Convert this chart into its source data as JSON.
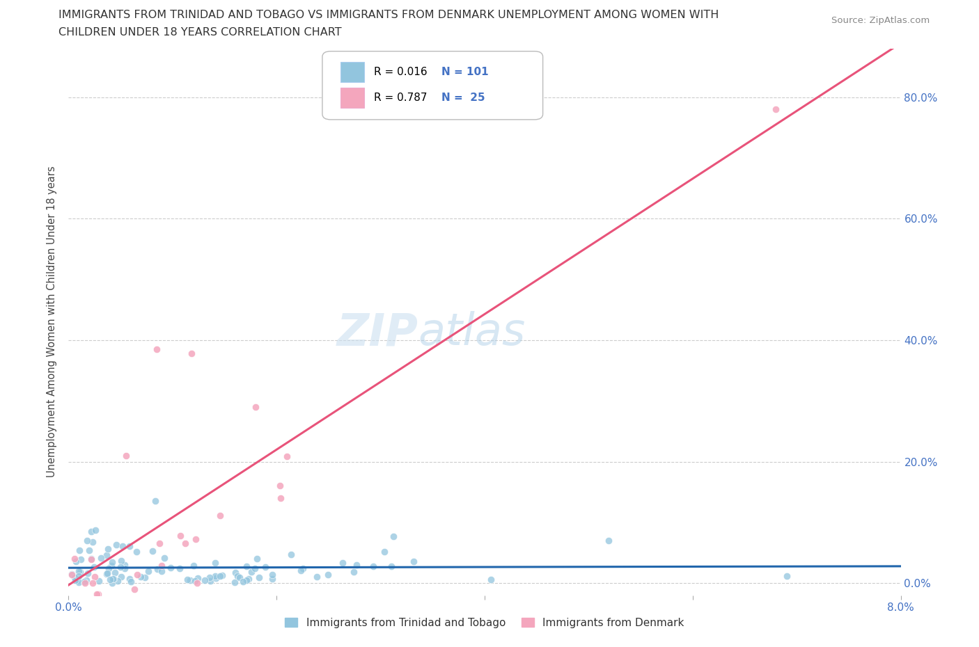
{
  "title_line1": "IMMIGRANTS FROM TRINIDAD AND TOBAGO VS IMMIGRANTS FROM DENMARK UNEMPLOYMENT AMONG WOMEN WITH",
  "title_line2": "CHILDREN UNDER 18 YEARS CORRELATION CHART",
  "source": "Source: ZipAtlas.com",
  "ylabel": "Unemployment Among Women with Children Under 18 years",
  "ytick_labels": [
    "0.0%",
    "20.0%",
    "40.0%",
    "60.0%",
    "80.0%"
  ],
  "ytick_values": [
    0.0,
    0.2,
    0.4,
    0.6,
    0.8
  ],
  "xlim": [
    0.0,
    0.08
  ],
  "ylim": [
    -0.02,
    0.88
  ],
  "legend_label1": "Immigrants from Trinidad and Tobago",
  "legend_label2": "Immigrants from Denmark",
  "color_blue": "#92c5de",
  "color_pink": "#f4a6bd",
  "color_blue_line": "#2166ac",
  "color_pink_line": "#e8537a",
  "color_blue_text": "#4472c4",
  "watermark_zip": "ZIP",
  "watermark_atlas": "atlas",
  "blue_R": "0.016",
  "blue_N": "101",
  "pink_R": "0.787",
  "pink_N": "25"
}
